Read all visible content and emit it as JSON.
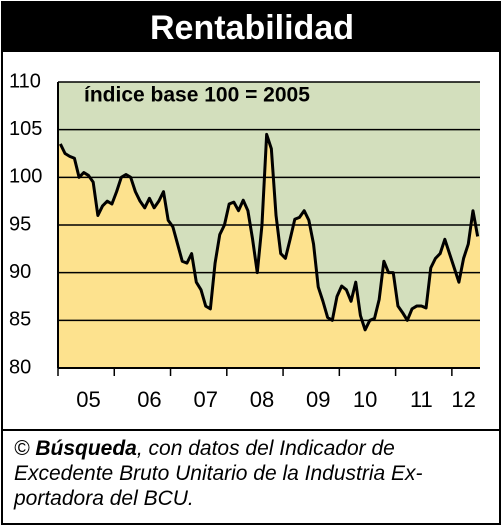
{
  "chart_data": {
    "type": "area",
    "title": "Rentabilidad",
    "annotation": "índice base 100 = 2005",
    "categories": [
      null,
      null,
      null,
      null,
      null,
      null,
      "05",
      null,
      null,
      null,
      null,
      null,
      null,
      null,
      null,
      null,
      null,
      null,
      null,
      "06",
      null,
      null,
      null,
      null,
      null,
      null,
      null,
      null,
      null,
      null,
      null,
      "07",
      null,
      null,
      null,
      null,
      null,
      null,
      null,
      null,
      null,
      null,
      null,
      "08",
      null,
      null,
      null,
      null,
      null,
      null,
      null,
      null,
      null,
      null,
      null,
      "09",
      null,
      null,
      null,
      null,
      null,
      null,
      null,
      null,
      null,
      "10",
      null,
      null,
      null,
      null,
      null,
      null,
      null,
      null,
      null,
      null,
      null,
      "11",
      null,
      null,
      null,
      null,
      null,
      null,
      null,
      null,
      "12",
      null,
      null,
      null
    ],
    "values": [
      103.5,
      102.5,
      102.2,
      102,
      100,
      100.5,
      100.2,
      99.5,
      96,
      97,
      97.5,
      97.2,
      98.5,
      100,
      100.3,
      100,
      98.5,
      97.5,
      96.8,
      97.8,
      96.8,
      97.5,
      98.5,
      95.5,
      94.8,
      93,
      91.2,
      91,
      92,
      89,
      88.2,
      86.5,
      86.2,
      91,
      94,
      95,
      97.2,
      97.4,
      96.5,
      97.6,
      96.5,
      93.5,
      90,
      95,
      104.5,
      103,
      96,
      92,
      91.5,
      93.5,
      95.6,
      95.8,
      96.5,
      95.5,
      93,
      88.5,
      87,
      85.3,
      85,
      87.5,
      88.6,
      88.2,
      87,
      89,
      85.5,
      84,
      85,
      85.2,
      87.2,
      91.2,
      90,
      90,
      86.5,
      85.8,
      85,
      86.2,
      86.5,
      86.5,
      86.3,
      90.5,
      91.5,
      92,
      93.5,
      92,
      90.5,
      89,
      91.5,
      93,
      96.5,
      93.8
    ],
    "color": "#fde28e",
    "line_color": "#000000",
    "background": "#d3dfbd",
    "ylim": [
      80,
      110
    ],
    "yticks": [
      80,
      85,
      90,
      95,
      100,
      105,
      110
    ],
    "grid": true,
    "footnote": {
      "symbol": "©",
      "source": "Búsqueda",
      "line1": ", con datos del Indicador de",
      "line2": "Excedente Bruto Unitario de la Industria Ex-",
      "line3": "portadora del BCU."
    }
  }
}
